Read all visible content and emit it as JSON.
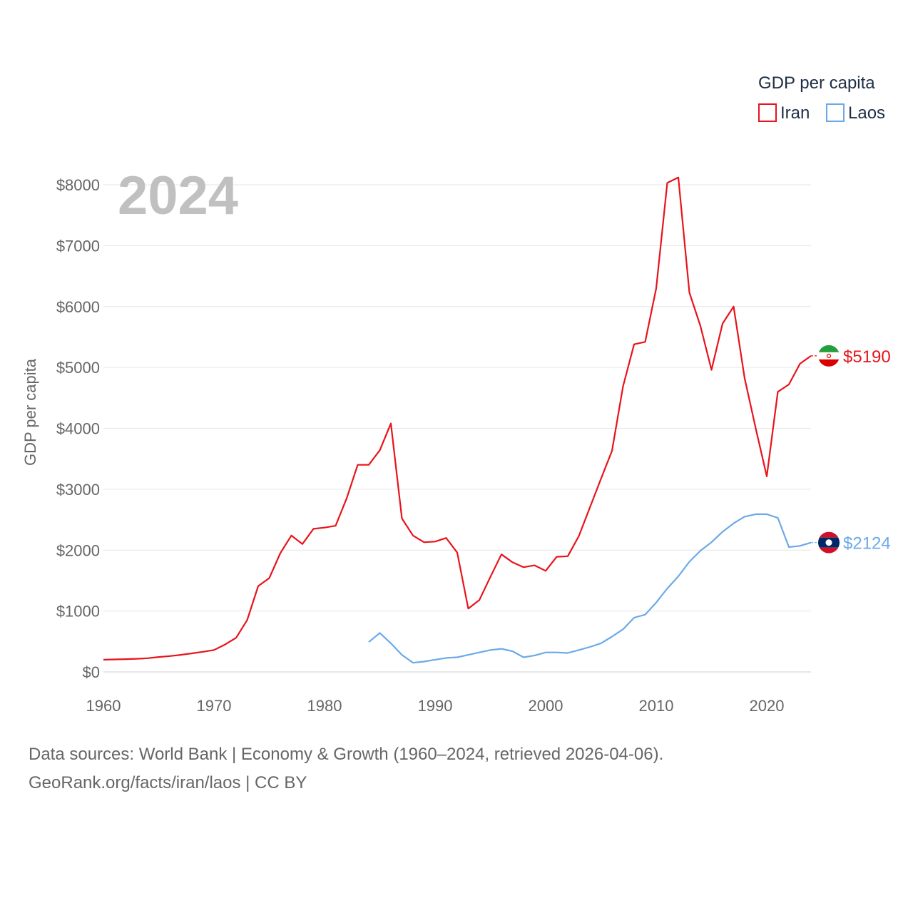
{
  "chart_data": {
    "type": "line",
    "title": "",
    "year_label": "2024",
    "xlabel": "",
    "ylabel": "GDP per capita",
    "xlim": [
      1960,
      2024
    ],
    "ylim": [
      0,
      8000
    ],
    "x_ticks": [
      1960,
      1970,
      1980,
      1990,
      2000,
      2010,
      2020
    ],
    "y_ticks": [
      0,
      1000,
      2000,
      3000,
      4000,
      5000,
      6000,
      7000,
      8000
    ],
    "y_tick_labels": [
      "$0",
      "$1000",
      "$2000",
      "$3000",
      "$4000",
      "$5000",
      "$6000",
      "$7000",
      "$8000"
    ],
    "legend": {
      "title": "GDP per capita",
      "position": "top-right"
    },
    "series": [
      {
        "name": "Iran",
        "color": "#e8131b",
        "end_label": "$5190",
        "flag": "iran-flag-icon",
        "x": [
          1960,
          1961,
          1962,
          1963,
          1964,
          1965,
          1966,
          1967,
          1968,
          1969,
          1970,
          1971,
          1972,
          1973,
          1974,
          1975,
          1976,
          1977,
          1978,
          1979,
          1980,
          1981,
          1982,
          1983,
          1984,
          1985,
          1986,
          1987,
          1988,
          1989,
          1990,
          1991,
          1992,
          1993,
          1994,
          1995,
          1996,
          1997,
          1998,
          1999,
          2000,
          2001,
          2002,
          2003,
          2004,
          2005,
          2006,
          2007,
          2008,
          2009,
          2010,
          2011,
          2012,
          2013,
          2014,
          2015,
          2016,
          2017,
          2018,
          2019,
          2020,
          2021,
          2022,
          2023,
          2024
        ],
        "values": [
          200,
          205,
          210,
          215,
          225,
          245,
          260,
          280,
          305,
          330,
          360,
          450,
          560,
          850,
          1410,
          1540,
          1950,
          2240,
          2100,
          2350,
          2370,
          2400,
          2850,
          3400,
          3400,
          3640,
          4080,
          2520,
          2240,
          2130,
          2140,
          2200,
          1960,
          1040,
          1180,
          1560,
          1930,
          1800,
          1720,
          1750,
          1660,
          1890,
          1900,
          2230,
          2700,
          3170,
          3630,
          4690,
          5380,
          5420,
          6300,
          8030,
          8120,
          6230,
          5680,
          4960,
          5720,
          6000,
          4820,
          4000,
          3210,
          4600,
          4720,
          5060,
          5190
        ]
      },
      {
        "name": "Laos",
        "color": "#6ca9e8",
        "end_label": "$2124",
        "flag": "laos-flag-icon",
        "x": [
          1984,
          1985,
          1986,
          1987,
          1988,
          1989,
          1990,
          1991,
          1992,
          1993,
          1994,
          1995,
          1996,
          1997,
          1998,
          1999,
          2000,
          2001,
          2002,
          2003,
          2004,
          2005,
          2006,
          2007,
          2008,
          2009,
          2010,
          2011,
          2012,
          2013,
          2014,
          2015,
          2016,
          2017,
          2018,
          2019,
          2020,
          2021,
          2022,
          2023,
          2024
        ],
        "values": [
          490,
          640,
          470,
          280,
          150,
          170,
          200,
          230,
          240,
          280,
          320,
          360,
          380,
          340,
          240,
          270,
          320,
          320,
          310,
          360,
          410,
          470,
          580,
          700,
          890,
          940,
          1140,
          1370,
          1570,
          1810,
          1990,
          2130,
          2300,
          2440,
          2550,
          2590,
          2590,
          2530,
          2050,
          2070,
          2124
        ]
      }
    ]
  },
  "footer": {
    "line1": "Data sources: World Bank | Economy & Growth (1960–2024, retrieved 2026-04-06).",
    "line2": "GeoRank.org/facts/iran/laos | CC BY"
  }
}
